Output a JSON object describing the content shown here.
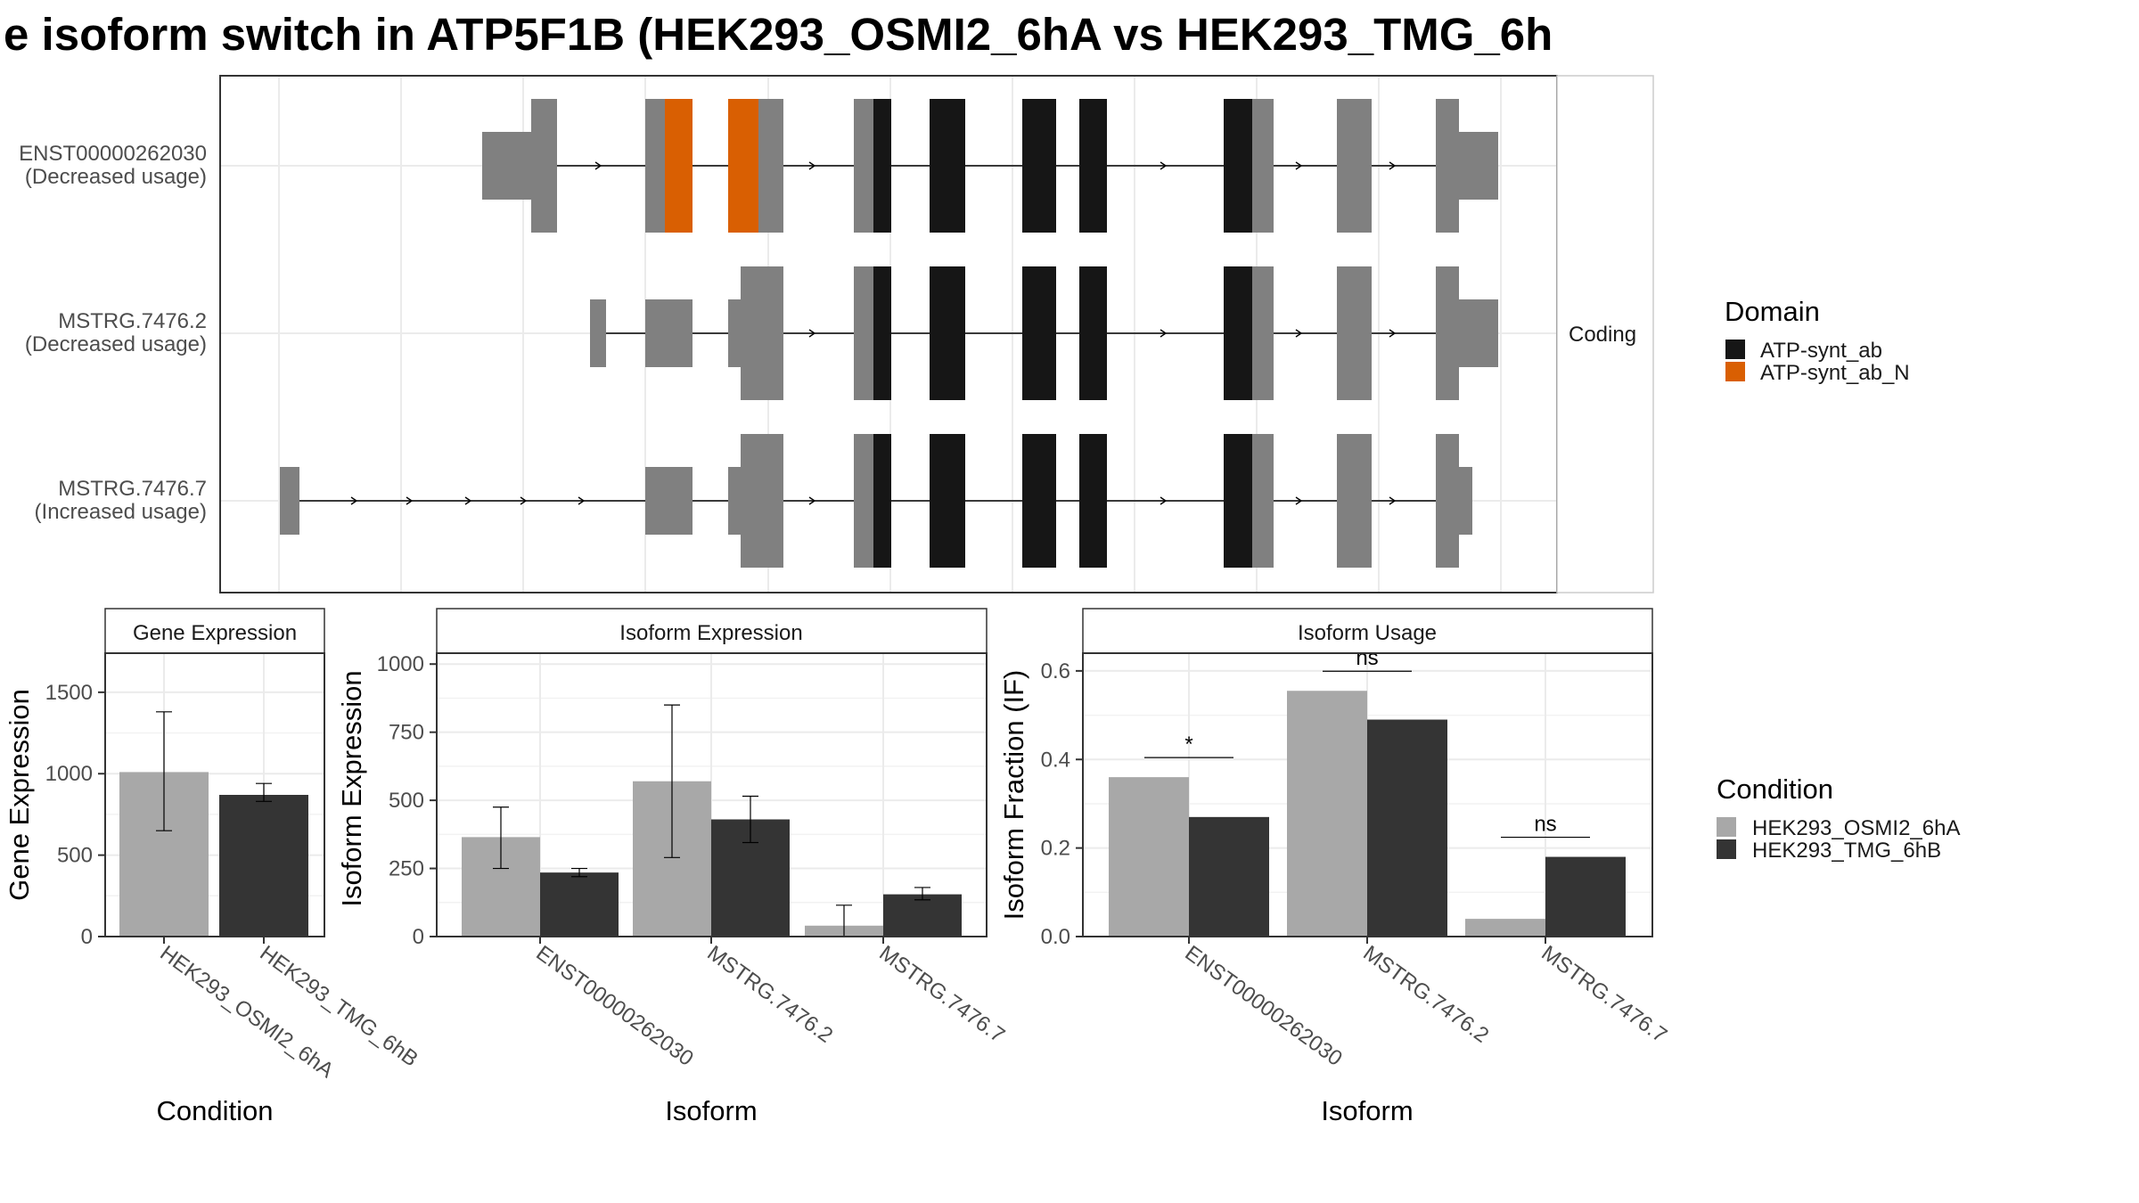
{
  "title": "e isoform switch in ATP5F1B (HEK293_OSMI2_6hA vs HEK293_TMG_6h",
  "colors": {
    "exon": "#808080",
    "domain_ATP_synt_ab": "#161616",
    "domain_ATP_synt_ab_N": "#d95f02",
    "cond_A": "#a8a8a8",
    "cond_B": "#343434"
  },
  "chart_data": [
    {
      "type": "gene-structure",
      "panel_strip": "Coding",
      "isoforms": [
        {
          "id": "ENST00000262030",
          "status": "(Decreased usage)"
        },
        {
          "id": "MSTRG.7476.2",
          "status": "(Decreased usage)"
        },
        {
          "id": "MSTRG.7476.7",
          "status": "(Increased usage)"
        }
      ],
      "legend": {
        "title": "Domain",
        "entries": [
          {
            "label": "ATP-synt_ab",
            "color": "#161616"
          },
          {
            "label": "ATP-synt_ab_N",
            "color": "#d95f02"
          }
        ]
      }
    },
    {
      "type": "bar",
      "strip": "Gene Expression",
      "xlabel": "Condition",
      "ylabel": "Gene Expression",
      "categories": [
        "HEK293_OSMI2_6hA",
        "HEK293_TMG_6hB"
      ],
      "values": [
        1010,
        870
      ],
      "error_low": [
        650,
        830
      ],
      "error_high": [
        1380,
        940
      ],
      "yticks": [
        0,
        500,
        1000,
        1500
      ],
      "ylim": [
        0,
        1740
      ]
    },
    {
      "type": "bar",
      "strip": "Isoform Expression",
      "xlabel": "Isoform",
      "ylabel": "Isoform Expression",
      "categories": [
        "ENST00000262030",
        "MSTRG.7476.2",
        "MSTRG.7476.7"
      ],
      "series": [
        {
          "name": "HEK293_OSMI2_6hA",
          "values": [
            365,
            570,
            40
          ],
          "error_low": [
            250,
            290,
            0
          ],
          "error_high": [
            475,
            850,
            115
          ]
        },
        {
          "name": "HEK293_TMG_6hB",
          "values": [
            235,
            430,
            155
          ],
          "error_low": [
            220,
            345,
            135
          ],
          "error_high": [
            250,
            515,
            180
          ]
        }
      ],
      "yticks": [
        0,
        250,
        500,
        750,
        1000
      ],
      "ylim": [
        0,
        1040
      ]
    },
    {
      "type": "bar",
      "strip": "Isoform Usage",
      "xlabel": "Isoform",
      "ylabel": "Isoform Fraction (IF)",
      "categories": [
        "ENST00000262030",
        "MSTRG.7476.2",
        "MSTRG.7476.7"
      ],
      "series": [
        {
          "name": "HEK293_OSMI2_6hA",
          "values": [
            0.36,
            0.555,
            0.04
          ]
        },
        {
          "name": "HEK293_TMG_6hB",
          "values": [
            0.27,
            0.49,
            0.18
          ]
        }
      ],
      "significance": [
        "*",
        "ns",
        "ns"
      ],
      "yticks": [
        "0.0",
        "0.2",
        "0.4",
        "0.6"
      ],
      "ylim": [
        0,
        0.64
      ]
    }
  ],
  "condition_legend": {
    "title": "Condition",
    "entries": [
      {
        "label": "HEK293_OSMI2_6hA",
        "color": "#a8a8a8"
      },
      {
        "label": "HEK293_TMG_6hB",
        "color": "#343434"
      }
    ]
  }
}
